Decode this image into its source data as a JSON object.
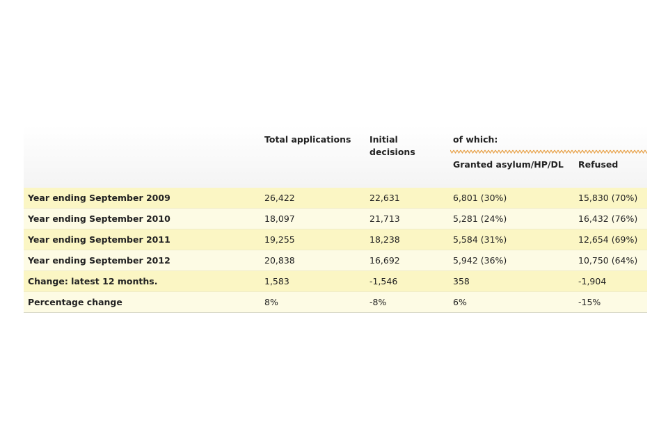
{
  "table": {
    "headers": {
      "total_applications": "Total applications",
      "initial_decisions": "Initial decisions",
      "of_which": "of which:",
      "granted": "Granted asylum/HP/DL",
      "refused": "Refused"
    },
    "rows": [
      {
        "label": "Year ending September 2009",
        "total": "26,422",
        "initial": "22,631",
        "granted": "6,801 (30%)",
        "refused": "15,830 (70%)"
      },
      {
        "label": "Year ending September 2010",
        "total": "18,097",
        "initial": "21,713",
        "granted": "5,281 (24%)",
        "refused": "16,432 (76%)"
      },
      {
        "label": "Year ending September 2011",
        "total": "19,255",
        "initial": "18,238",
        "granted": "5,584 (31%)",
        "refused": "12,654 (69%)"
      },
      {
        "label": "Year ending September 2012",
        "total": "20,838",
        "initial": "16,692",
        "granted": "5,942 (36%)",
        "refused": "10,750 (64%)"
      },
      {
        "label": "Change: latest 12 months.",
        "total": "1,583",
        "initial": "-1,546",
        "granted": "358",
        "refused": "-1,904"
      },
      {
        "label": "Percentage change",
        "total": "8%",
        "initial": "-8%",
        "granted": "6%",
        "refused": "-15%"
      }
    ]
  },
  "colors": {
    "accent_orange": "#e8a24a",
    "row_odd": "#fbf6c4",
    "row_even": "#fdfbe4"
  }
}
